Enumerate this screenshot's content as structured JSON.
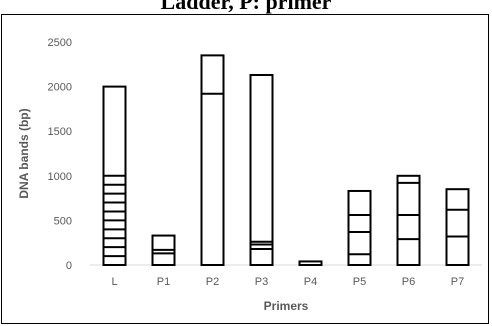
{
  "chart_data": {
    "type": "bar",
    "title": "Ladder, P: primer",
    "xlabel": "Primers",
    "ylabel": "DNA bands (bp)",
    "ylim": [
      0,
      2500
    ],
    "yticks": [
      0,
      500,
      1000,
      1500,
      2000,
      2500
    ],
    "grid": false,
    "legend": "none",
    "lanes": [
      {
        "label": "L",
        "top": 2000,
        "bands": [
          100,
          200,
          300,
          400,
          500,
          600,
          700,
          800,
          900,
          1000,
          2000
        ]
      },
      {
        "label": "P1",
        "top": 330,
        "bands": [
          130,
          170,
          330
        ]
      },
      {
        "label": "P2",
        "top": 2350,
        "bands": [
          1920,
          2350
        ]
      },
      {
        "label": "P3",
        "top": 2130,
        "bands": [
          180,
          230,
          260,
          2130
        ]
      },
      {
        "label": "P4",
        "top": 40,
        "bands": [
          40
        ]
      },
      {
        "label": "P5",
        "top": 830,
        "bands": [
          120,
          370,
          560,
          830
        ]
      },
      {
        "label": "P6",
        "top": 1000,
        "bands": [
          290,
          560,
          920,
          1000
        ]
      },
      {
        "label": "P7",
        "top": 850,
        "bands": [
          320,
          620,
          850
        ]
      }
    ]
  },
  "colors": {
    "bar_fill": "#ffffff",
    "bar_stroke": "#000000",
    "axis_line": "#d9d9d9",
    "tick_text": "#595959"
  }
}
